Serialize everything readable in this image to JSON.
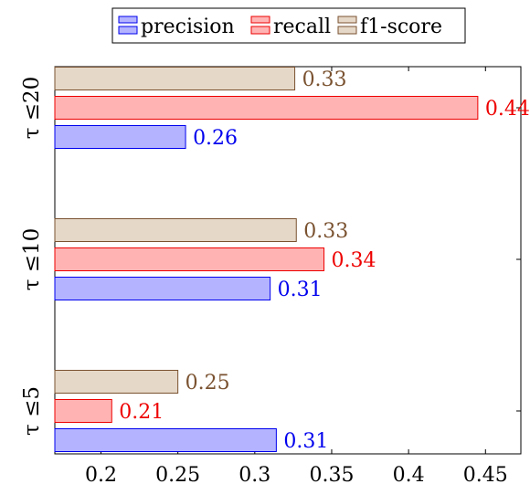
{
  "chart_data": {
    "type": "bar",
    "orientation": "horizontal",
    "categories": [
      "τ ≤5",
      "τ ≤10",
      "τ ≤20"
    ],
    "series": [
      {
        "name": "precision",
        "values": [
          0.314,
          0.31,
          0.255
        ],
        "labels": [
          "0.31",
          "0.31",
          "0.26"
        ],
        "color": "#0000ee",
        "fill": "#b3b3ff"
      },
      {
        "name": "recall",
        "values": [
          0.207,
          0.345,
          0.445
        ],
        "labels": [
          "0.21",
          "0.34",
          "0.44"
        ],
        "color": "#ee0000",
        "fill": "#ffb3b3"
      },
      {
        "name": "f1-score",
        "values": [
          0.25,
          0.327,
          0.326
        ],
        "labels": [
          "0.25",
          "0.33",
          "0.33"
        ],
        "color": "#7a5230",
        "fill": "#e6d8c8"
      }
    ],
    "xlim": [
      0.17,
      0.473
    ],
    "xticks": [
      "0.2",
      "0.25",
      "0.3",
      "0.35",
      "0.4",
      "0.45"
    ],
    "grid": false,
    "legend": "top"
  }
}
